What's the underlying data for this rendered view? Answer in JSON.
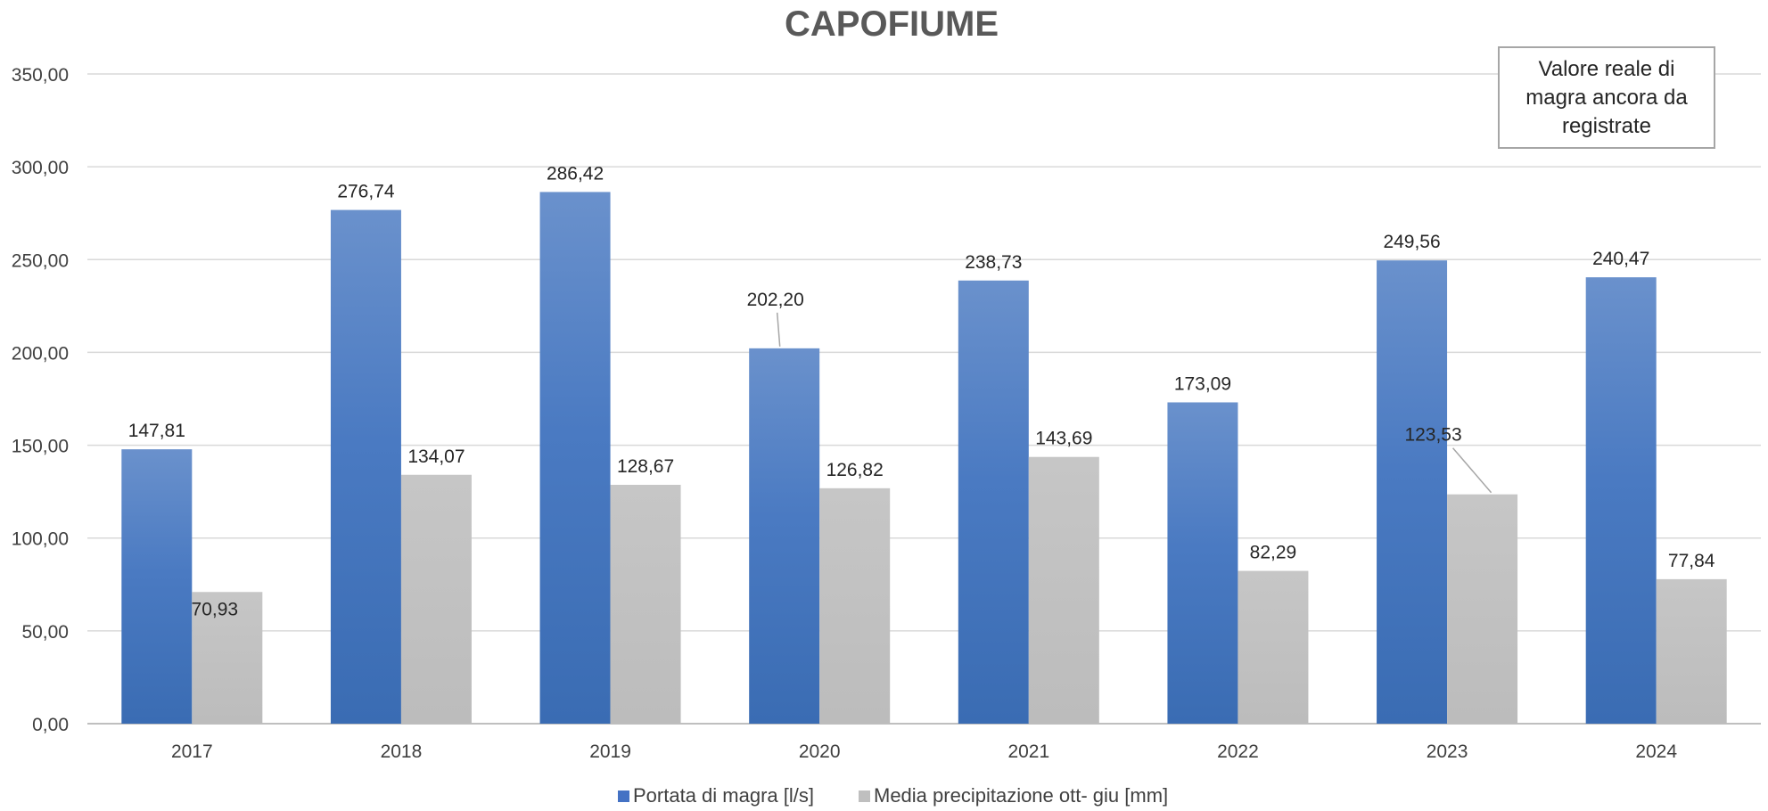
{
  "chart_data": {
    "type": "bar",
    "title": "CAPOFIUME",
    "categories": [
      "2017",
      "2018",
      "2019",
      "2020",
      "2021",
      "2022",
      "2023",
      "2024"
    ],
    "series": [
      {
        "name": "Portata di magra [l/s]",
        "color": "#4472c4",
        "values": [
          147.81,
          276.74,
          286.42,
          202.2,
          238.73,
          173.09,
          249.56,
          240.47
        ],
        "labels": [
          "147,81",
          "276,74",
          "286,42",
          "202,20",
          "238,73",
          "173,09",
          "249,56",
          "240,47"
        ]
      },
      {
        "name": "Media precipitazione ott- giu [mm]",
        "color": "#bfbfbf",
        "values": [
          70.93,
          134.07,
          128.67,
          126.82,
          143.69,
          82.29,
          123.53,
          77.84
        ],
        "labels": [
          "70,93",
          "134,07",
          "128,67",
          "126,82",
          "143,69",
          "82,29",
          "123,53",
          "77,84"
        ]
      }
    ],
    "ylim": [
      0,
      350
    ],
    "yticks": [
      0,
      50,
      100,
      150,
      200,
      250,
      300,
      350
    ],
    "ytick_labels": [
      "0,00",
      "50,00",
      "100,00",
      "150,00",
      "200,00",
      "250,00",
      "300,00",
      "350,00"
    ],
    "grid": true,
    "legend_position": "bottom",
    "annotation": "Valore reale di\nmagra ancora da\nregistrate"
  }
}
